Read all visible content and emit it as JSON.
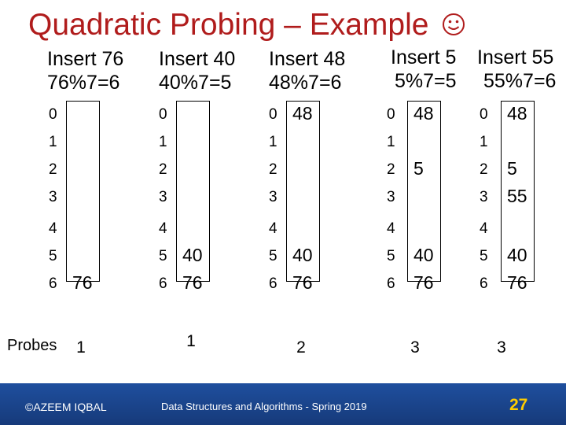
{
  "slide": {
    "title": "Quadratic Probing – Example",
    "probes_label": "Probes",
    "indices": [
      "0",
      "1",
      "2",
      "3",
      "4",
      "5",
      "6"
    ],
    "steps": [
      {
        "op": "Insert 76",
        "hash": "76%7=6",
        "cells": [
          "",
          "",
          "",
          "",
          "",
          "",
          "76"
        ],
        "probes": "1"
      },
      {
        "op": "Insert 40",
        "hash": "40%7=5",
        "cells": [
          "",
          "",
          "",
          "",
          "",
          "40",
          "76"
        ],
        "probes": "1"
      },
      {
        "op": "Insert 48",
        "hash": "48%7=6",
        "cells": [
          "48",
          "",
          "",
          "",
          "",
          "40",
          "76"
        ],
        "probes": "2"
      },
      {
        "op": "Insert 5",
        "hash": "5%7=5",
        "cells": [
          "48",
          "",
          "5",
          "",
          "",
          "40",
          "76"
        ],
        "probes": "3"
      },
      {
        "op": "Insert 55",
        "hash": "55%7=6",
        "cells": [
          "48",
          "",
          "5",
          "55",
          "",
          "40",
          "76"
        ],
        "probes": "3"
      }
    ]
  },
  "footer": {
    "author": "©AZEEM IQBAL",
    "course": "Data Structures and Algorithms - Spring 2019",
    "page": "27"
  }
}
